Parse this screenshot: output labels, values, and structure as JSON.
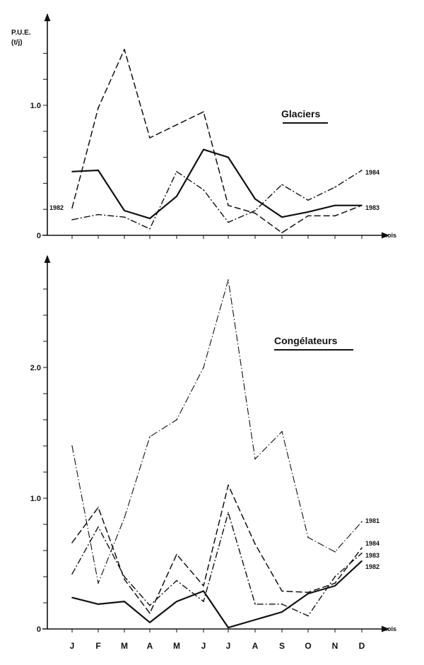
{
  "chart_data": [
    {
      "type": "line",
      "title": "Glaciers",
      "ylabel": "P.U.E. (t/j)",
      "xlabel": "mois",
      "categories": [
        "J",
        "F",
        "M",
        "A",
        "M",
        "J",
        "J",
        "A",
        "S",
        "O",
        "N",
        "D"
      ],
      "ylim": [
        0,
        1.65
      ],
      "yticks": [
        0,
        1.0
      ],
      "yticks_labels": [
        "0",
        "1.0"
      ],
      "grid": false,
      "series": [
        {
          "name": "1982",
          "style": "dashed",
          "values": [
            0.21,
            0.98,
            1.43,
            0.75,
            0.85,
            0.95,
            0.23,
            0.17,
            0.02,
            0.15,
            0.15,
            0.23
          ]
        },
        {
          "name": "1983",
          "style": "solid",
          "values": [
            0.49,
            0.5,
            0.19,
            0.13,
            0.3,
            0.66,
            0.6,
            0.28,
            0.14,
            0.18,
            0.23,
            0.23
          ]
        },
        {
          "name": "1984",
          "style": "dash-dot",
          "values": [
            0.12,
            0.16,
            0.14,
            0.05,
            0.49,
            0.35,
            0.1,
            0.19,
            0.39,
            0.27,
            0.37,
            0.5
          ]
        }
      ]
    },
    {
      "type": "line",
      "title": "Congélateurs",
      "xlabel": "mois",
      "categories": [
        "J",
        "F",
        "M",
        "A",
        "M",
        "J",
        "J",
        "A",
        "S",
        "O",
        "N",
        "D"
      ],
      "ylim": [
        0,
        2.85
      ],
      "yticks": [
        0,
        1.0,
        2.0
      ],
      "yticks_labels": [
        "0",
        "1.0",
        "2.0"
      ],
      "grid": false,
      "series": [
        {
          "name": "1981",
          "style": "dash-dot-thin",
          "values": [
            1.4,
            0.35,
            0.85,
            1.47,
            1.6,
            2.0,
            2.67,
            1.3,
            1.51,
            0.7,
            0.59,
            0.82
          ]
        },
        {
          "name": "1984",
          "style": "dashed",
          "values": [
            0.66,
            0.93,
            0.38,
            0.12,
            0.57,
            0.33,
            1.1,
            0.65,
            0.29,
            0.28,
            0.35,
            0.62
          ]
        },
        {
          "name": "1983",
          "style": "dash-dot",
          "values": [
            0.42,
            0.78,
            0.4,
            0.18,
            0.37,
            0.21,
            0.89,
            0.19,
            0.19,
            0.1,
            0.4,
            0.58
          ]
        },
        {
          "name": "1982",
          "style": "solid",
          "values": [
            0.24,
            0.19,
            0.21,
            0.05,
            0.21,
            0.29,
            0.01,
            0.07,
            0.13,
            0.27,
            0.33,
            0.52
          ]
        }
      ]
    }
  ],
  "labels": {
    "ylabel_line1": "P.U.E.",
    "ylabel_line2": "(t/j)",
    "top_title": "Glaciers",
    "bottom_title": "Congélateurs",
    "xunit_top": "mois",
    "xunit_bottom": "mois",
    "top_series_labels": [
      "1982",
      "1983",
      "1984"
    ],
    "bottom_series_labels": [
      "1981",
      "1984",
      "1983",
      "1982"
    ]
  },
  "colors": {
    "ink": "#111111",
    "background": "#ffffff"
  }
}
